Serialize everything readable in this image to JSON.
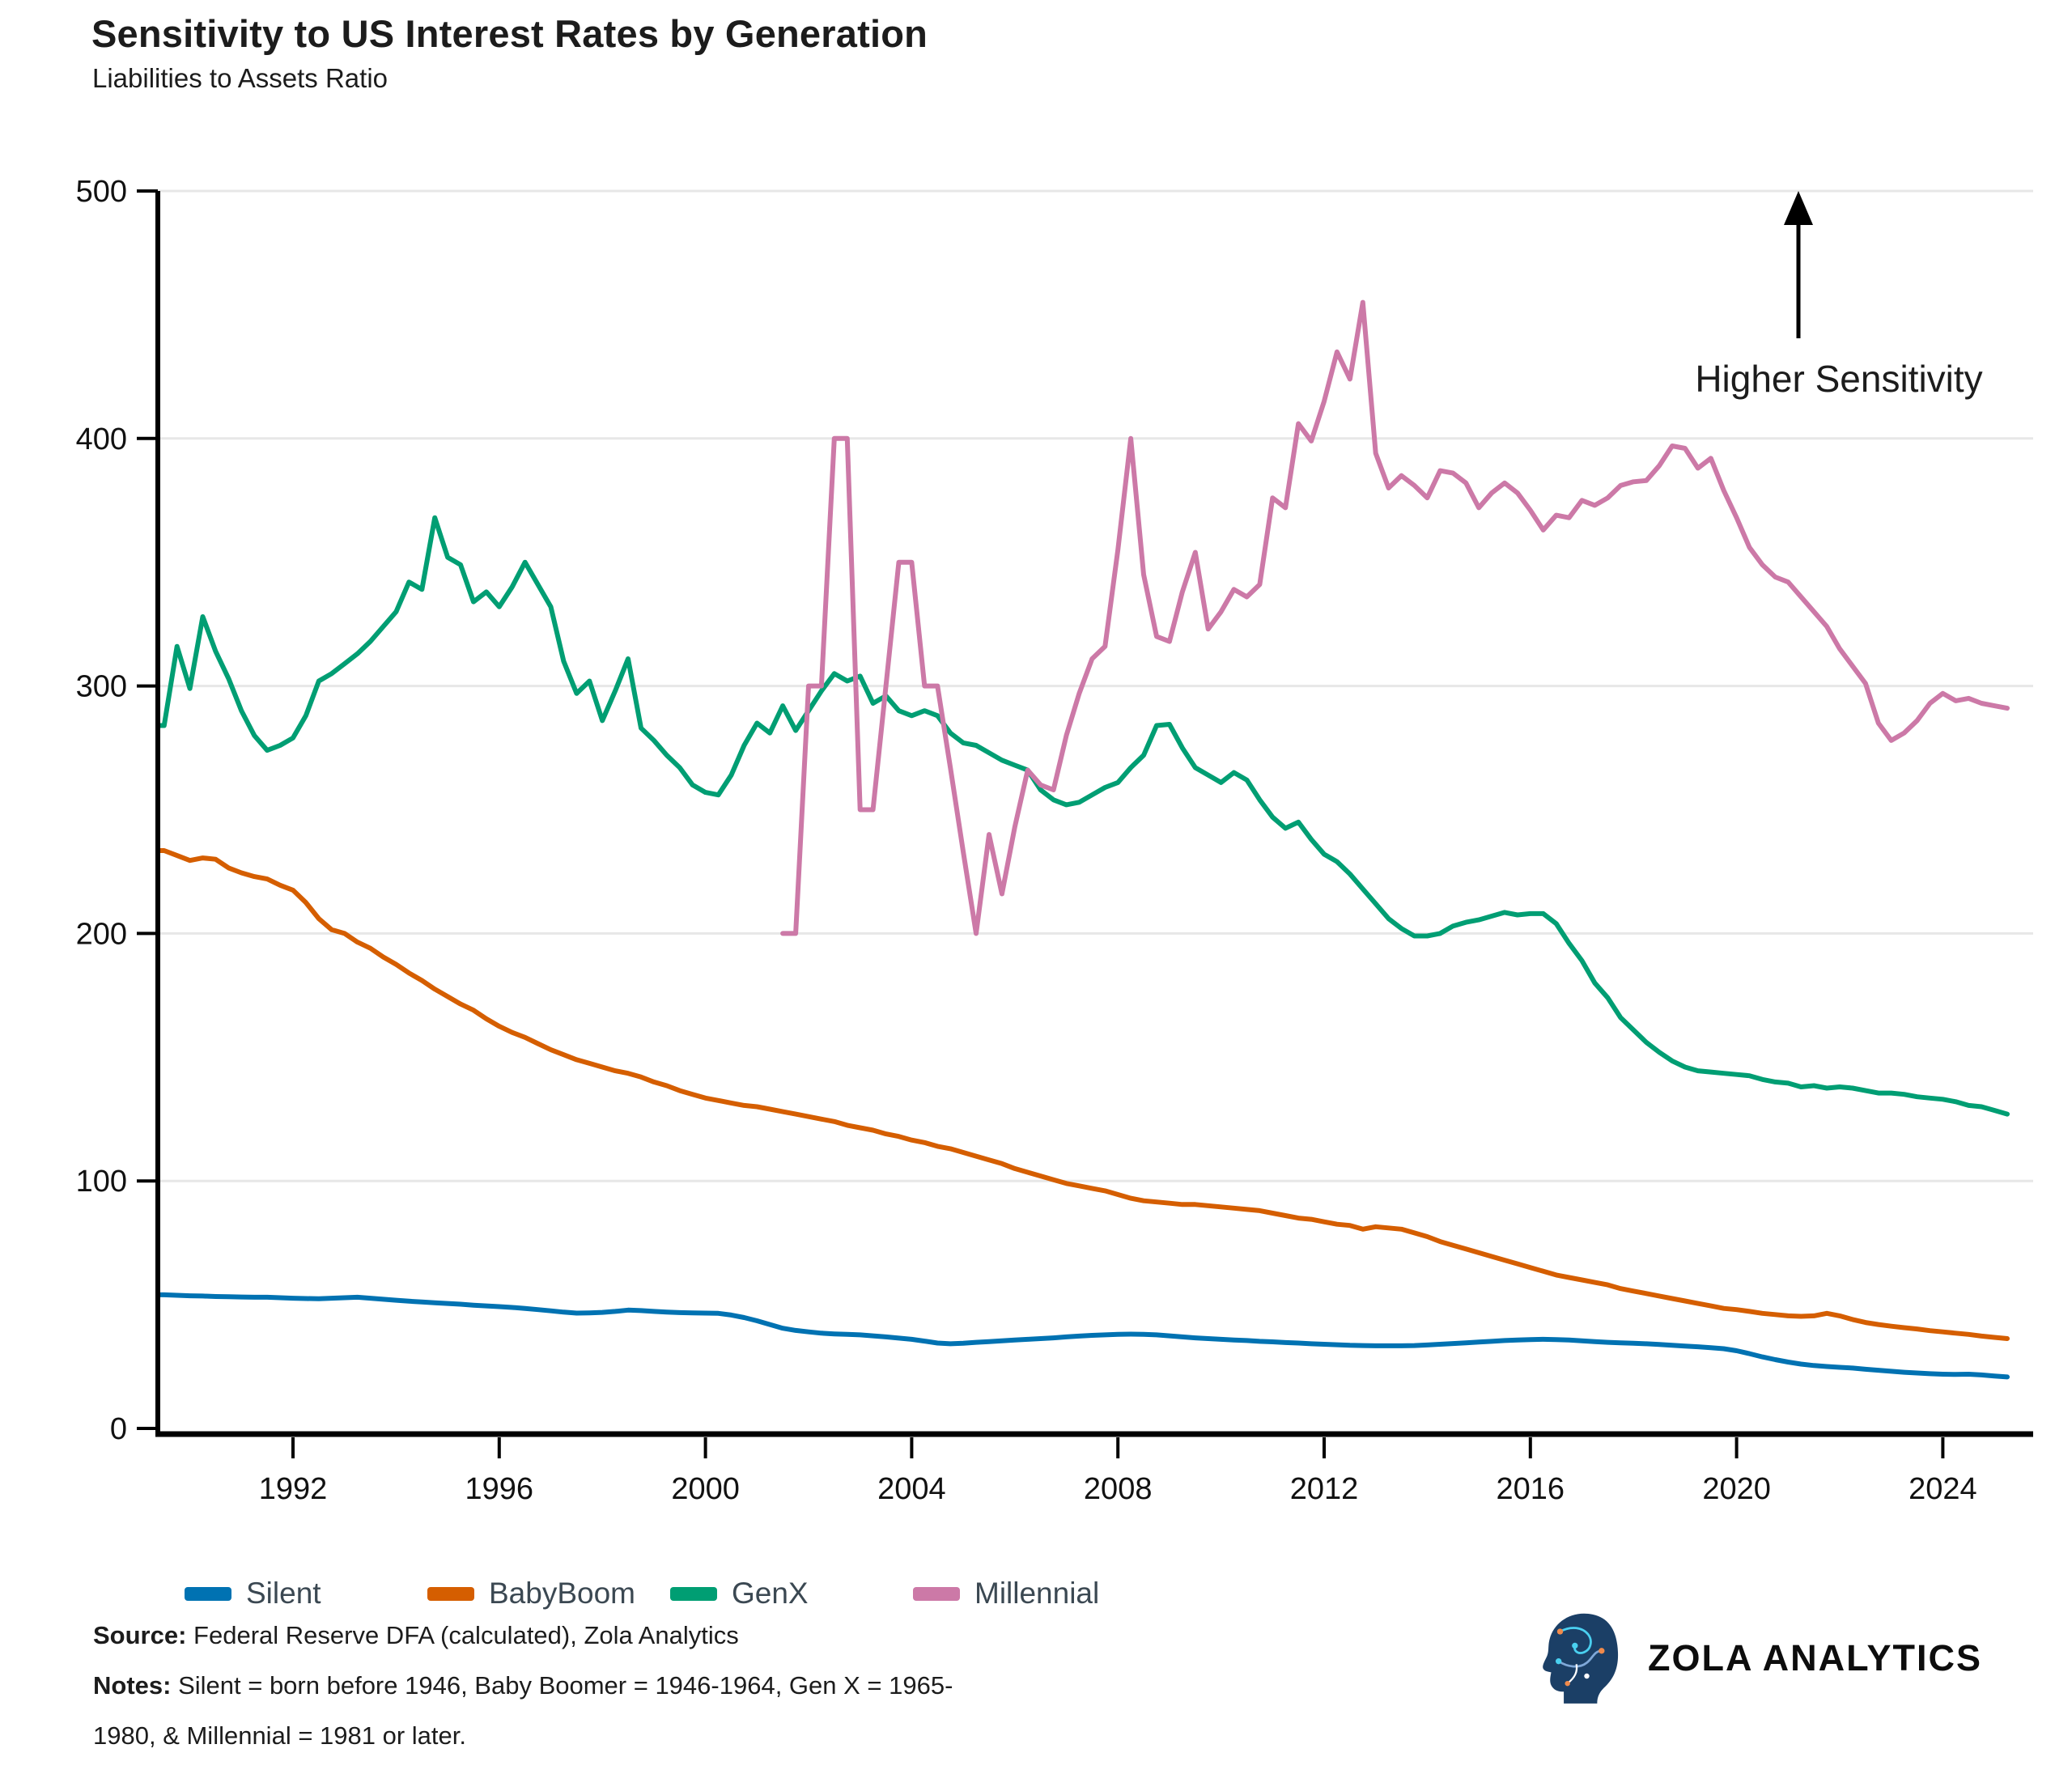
{
  "title": "Sensitivity to US Interest Rates by Generation",
  "subtitle": "Liabilities to Assets Ratio",
  "annotation": {
    "text": "Higher Sensitivity"
  },
  "legend": [
    {
      "label": "Silent",
      "color": "#0072B2"
    },
    {
      "label": "BabyBoom",
      "color": "#D55E00"
    },
    {
      "label": "GenX",
      "color": "#009E73"
    },
    {
      "label": "Millennial",
      "color": "#CC79A7"
    }
  ],
  "footer": {
    "source_label": "Source:",
    "source_text": " Federal Reserve DFA (calculated), Zola Analytics",
    "notes_label": "Notes:",
    "notes_text": " Silent = born before 1946, Baby Boomer = 1946-1964, Gen X = 1965-1980, & Millennial = 1981 or later."
  },
  "brand": {
    "name": "ZOLA ANALYTICS"
  },
  "chart_data": {
    "type": "line",
    "title": "Sensitivity to US Interest Rates by Generation",
    "subtitle_as_ylabel": "Liabilities to Assets Ratio",
    "xlabel": "",
    "ylabel": "Liabilities to Assets Ratio",
    "ylim": [
      0,
      500
    ],
    "yticks": [
      0,
      100,
      200,
      300,
      400,
      500
    ],
    "xticks": [
      1992,
      1996,
      2000,
      2004,
      2008,
      2012,
      2016,
      2020,
      2024
    ],
    "xlim": [
      1989.4,
      2025.45
    ],
    "grid": "horizontal",
    "legend_position": "bottom",
    "colors": {
      "axis": "#000000",
      "grid": "#e7e7e7",
      "tick_text": "#111111"
    },
    "series": [
      {
        "name": "Silent",
        "color": "#0072B2",
        "start": 1989.5,
        "step": 0.25,
        "values": [
          54,
          53.8,
          53.6,
          53.5,
          53.3,
          53.2,
          53.1,
          53,
          53,
          52.8,
          52.6,
          52.5,
          52.4,
          52.6,
          52.8,
          53,
          52.6,
          52.2,
          51.8,
          51.4,
          51.1,
          50.8,
          50.5,
          50.2,
          49.8,
          49.5,
          49.2,
          48.9,
          48.5,
          48,
          47.5,
          47,
          46.6,
          46.7,
          46.9,
          47.3,
          47.8,
          47.6,
          47.3,
          47,
          46.8,
          46.7,
          46.6,
          46.5,
          45.8,
          44.8,
          43.5,
          42,
          40.5,
          39.6,
          39,
          38.5,
          38.2,
          38,
          37.8,
          37.4,
          37,
          36.5,
          36,
          35.3,
          34.5,
          34.2,
          34.4,
          34.8,
          35.1,
          35.4,
          35.7,
          36,
          36.3,
          36.6,
          37,
          37.3,
          37.6,
          37.8,
          38,
          38.1,
          38,
          37.8,
          37.4,
          37,
          36.6,
          36.3,
          36,
          35.7,
          35.5,
          35.2,
          35,
          34.7,
          34.5,
          34.2,
          34,
          33.8,
          33.6,
          33.5,
          33.4,
          33.4,
          33.4,
          33.5,
          33.7,
          34,
          34.3,
          34.6,
          34.9,
          35.2,
          35.5,
          35.7,
          35.9,
          36,
          35.9,
          35.7,
          35.4,
          35.1,
          34.8,
          34.6,
          34.4,
          34.2,
          33.9,
          33.6,
          33.3,
          33,
          32.6,
          32.2,
          31.4,
          30.2,
          28.9,
          27.8,
          26.8,
          26,
          25.4,
          25,
          24.7,
          24.4,
          23.9,
          23.5,
          23.1,
          22.7,
          22.4,
          22.1,
          21.9,
          21.8,
          21.9,
          21.6,
          21.2,
          20.8
        ]
      },
      {
        "name": "BabyBoom",
        "color": "#D55E00",
        "start": 1989.5,
        "step": 0.25,
        "values": [
          233.5,
          231.5,
          229.5,
          230.5,
          230,
          226.5,
          224.5,
          223,
          222,
          219.5,
          217.5,
          212.5,
          206,
          201.5,
          200,
          196.5,
          194,
          190.5,
          187.5,
          184,
          181,
          177.5,
          174.5,
          171.5,
          169,
          165.5,
          162.5,
          160,
          158,
          155.5,
          153,
          151,
          149,
          147.5,
          146,
          144.5,
          143.5,
          142,
          140,
          138.5,
          136.5,
          135,
          133.5,
          132.5,
          131.5,
          130.5,
          130,
          129,
          128,
          127,
          126,
          125,
          124,
          122.5,
          121.5,
          120.5,
          119,
          118,
          116.5,
          115.5,
          114,
          113,
          111.5,
          110,
          108.5,
          107,
          105,
          103.5,
          102,
          100.5,
          99,
          98,
          97,
          96,
          94.5,
          93,
          92,
          91.5,
          91,
          90.5,
          90.5,
          90,
          89.5,
          89,
          88.5,
          88,
          87,
          86,
          85,
          84.5,
          83.5,
          82.5,
          82,
          80.5,
          81.5,
          81,
          80.5,
          79,
          77.5,
          75.5,
          74,
          72.5,
          71,
          69.5,
          68,
          66.5,
          65,
          63.5,
          62,
          61,
          60,
          59,
          58,
          56.5,
          55.5,
          54.5,
          53.5,
          52.5,
          51.5,
          50.5,
          49.5,
          48.5,
          48,
          47.3,
          46.5,
          46,
          45.5,
          45.3,
          45.5,
          46.5,
          45.5,
          44,
          42.8,
          42,
          41.3,
          40.7,
          40.2,
          39.5,
          39,
          38.5,
          38,
          37.3,
          36.8,
          36.3
        ]
      },
      {
        "name": "GenX",
        "color": "#009E73",
        "start": 1989.5,
        "step": 0.25,
        "values": [
          284,
          316,
          299,
          328,
          314,
          303,
          290,
          280,
          274,
          276,
          279,
          288,
          302,
          305,
          309,
          313,
          318,
          324,
          330,
          342,
          339,
          368,
          352,
          349,
          334,
          338,
          332,
          340,
          350,
          341,
          332,
          310,
          297,
          302,
          286,
          298,
          311,
          283,
          278,
          272,
          267,
          260,
          257,
          256,
          264,
          276,
          285,
          281,
          292,
          282,
          290,
          298,
          305,
          302,
          304,
          293,
          296,
          290,
          288,
          290,
          288,
          281,
          277,
          276,
          273,
          270,
          268,
          266,
          258,
          254,
          252,
          253,
          256,
          259,
          261,
          267,
          272,
          284,
          284.5,
          275,
          267,
          264,
          261,
          265,
          262,
          254,
          247,
          242.5,
          245,
          238,
          232,
          229,
          224,
          218,
          212,
          206,
          202,
          199,
          199,
          200,
          203,
          204.5,
          205.5,
          207,
          208.5,
          207.5,
          208,
          208,
          204,
          196,
          189,
          180,
          174,
          166,
          161,
          156,
          152,
          148.5,
          146,
          144.5,
          144,
          143.5,
          143,
          142.5,
          141,
          140,
          139.5,
          138,
          138.5,
          137.5,
          138,
          137.5,
          136.5,
          135.5,
          135.5,
          135,
          134,
          133.5,
          133,
          132,
          130.5,
          130,
          128.5,
          127
        ]
      },
      {
        "name": "Millennial",
        "color": "#CC79A7",
        "start": 2001.5,
        "step": 0.25,
        "values": [
          200,
          200,
          300,
          300,
          400,
          400,
          250,
          250,
          300,
          350,
          350,
          300,
          300,
          267,
          233,
          200,
          240,
          216,
          243,
          266,
          260,
          258,
          280,
          297,
          311,
          316,
          355,
          400,
          345,
          320,
          318,
          338,
          354,
          323,
          330,
          339,
          336,
          341,
          376,
          372,
          406,
          399,
          415,
          435,
          424,
          455,
          394,
          380,
          385,
          381,
          376,
          387,
          386,
          382,
          372,
          378,
          382,
          378,
          371,
          363,
          369,
          368,
          375,
          373,
          376,
          381,
          382.5,
          383,
          389,
          397,
          396,
          388,
          392,
          379,
          368,
          356,
          349,
          344,
          342,
          336,
          330,
          324,
          315,
          308,
          301,
          285,
          278,
          281,
          286,
          293,
          297,
          294,
          295,
          293,
          292,
          291
        ]
      }
    ]
  }
}
